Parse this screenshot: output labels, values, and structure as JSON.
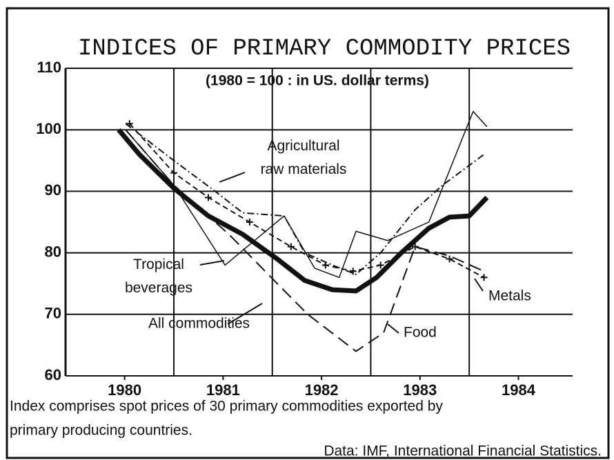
{
  "chart_data": {
    "type": "line",
    "title": "INDICES OF PRIMARY COMMODITY PRICES",
    "subtitle": "(1980 = 100 : in US. dollar terms)",
    "note": [
      "Index comprises spot prices of 30 primary commodities exported by",
      "primary producing countries."
    ],
    "source": "Data: IMF, International Financial Statistics.",
    "xlim": [
      1979.9,
      1985.05
    ],
    "ylim": [
      60,
      110
    ],
    "yticks": [
      60,
      70,
      80,
      90,
      100,
      110
    ],
    "xticks": [
      {
        "value": 1980.5,
        "label": "1980"
      },
      {
        "value": 1981.5,
        "label": "1981"
      },
      {
        "value": 1982.5,
        "label": "1982"
      },
      {
        "value": 1983.5,
        "label": "1983"
      },
      {
        "value": 1984.5,
        "label": "1984"
      }
    ],
    "xgrid": [
      1981,
      1982,
      1983,
      1984
    ],
    "grid": true,
    "series": [
      {
        "name": "All commodities",
        "color": "#111111",
        "style": "thick",
        "x": [
          1980.44,
          1980.65,
          1981.0,
          1981.35,
          1981.7,
          1982.05,
          1982.33,
          1982.61,
          1982.85,
          1983.06,
          1983.31,
          1983.59,
          1983.8,
          1984.0,
          1984.18
        ],
        "values": [
          100,
          96,
          90.5,
          86,
          83,
          79,
          75.5,
          74,
          73.8,
          76,
          80,
          84,
          85.8,
          86,
          89
        ]
      },
      {
        "name": "Tropical beverages",
        "color": "#111111",
        "style": "solid",
        "x": [
          1980.51,
          1981.0,
          1981.52,
          1982.12,
          1982.43,
          1982.68,
          1982.85,
          1983.17,
          1983.59,
          1984.04,
          1984.18
        ],
        "values": [
          100,
          91,
          78,
          86,
          77.5,
          76,
          83.5,
          82,
          85,
          103,
          100.5
        ]
      },
      {
        "name": "Agricultural raw materials",
        "color": "#111111",
        "style": "dashdot",
        "x": [
          1980.51,
          1981.0,
          1981.42,
          1981.7,
          1982.12,
          1982.33,
          1982.61,
          1982.85,
          1983.1,
          1983.45,
          1983.73,
          1984.15
        ],
        "values": [
          101,
          95,
          90,
          86.5,
          86,
          80,
          78,
          76.5,
          80,
          87,
          91,
          96
        ]
      },
      {
        "name": "Metals",
        "color": "#111111",
        "style": "dashcross",
        "x": [
          1980.55,
          1981.0,
          1981.35,
          1981.77,
          1982.19,
          1982.54,
          1982.82,
          1983.1,
          1983.45,
          1983.8,
          1984.15
        ],
        "values": [
          101,
          93,
          89,
          85,
          81,
          78,
          77,
          78,
          81,
          79,
          76
        ]
      },
      {
        "name": "Food",
        "color": "#111111",
        "style": "dashed",
        "x": [
          1980.51,
          1981.0,
          1981.56,
          1982.05,
          1982.36,
          1982.85,
          1983.13,
          1983.45,
          1983.8,
          1984.15
        ],
        "values": [
          100,
          91,
          83,
          75,
          70,
          64,
          67,
          81,
          79.5,
          77
        ]
      }
    ]
  }
}
